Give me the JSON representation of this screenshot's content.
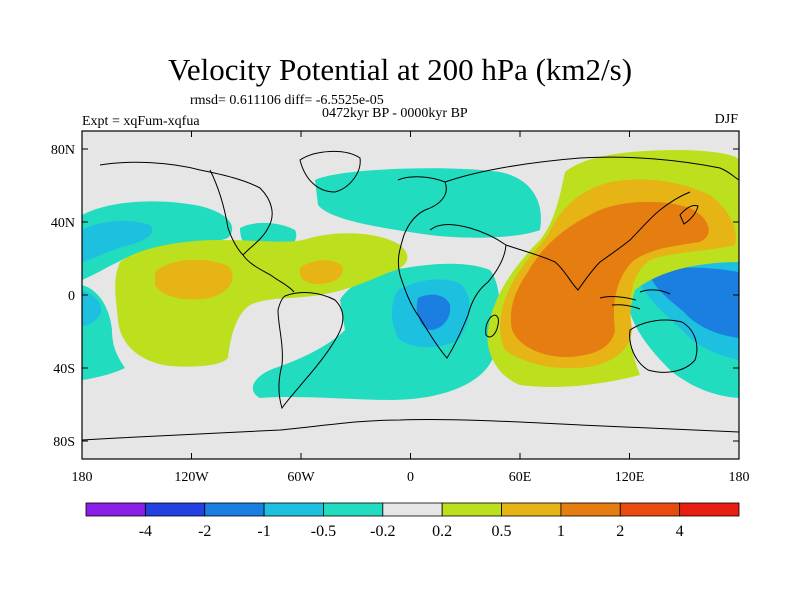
{
  "title": "Velocity Potential at 200 hPa (km2/s)",
  "stats": "rmsd= 0.611106 diff= -6.5525e-05",
  "left_label": "Expt = xqFum-xqfua",
  "center_label": "0472kyr BP - 0000kyr BP",
  "right_label": "DJF",
  "lat_ticks": [
    "80N",
    "40N",
    "0",
    "40S",
    "80S"
  ],
  "lon_ticks": [
    "180",
    "120W",
    "60W",
    "0",
    "60E",
    "120E",
    "180"
  ],
  "colorbar": {
    "labels": [
      "-4",
      "-2",
      "-1",
      "-0.5",
      "-0.2",
      "0.2",
      "0.5",
      "1",
      "2",
      "4"
    ],
    "colors": [
      "#8a1ee6",
      "#2340e0",
      "#1a7fe0",
      "#1ec0e0",
      "#22dcc0",
      "#e6e6e6",
      "#bde01e",
      "#e6b415",
      "#e57d10",
      "#e84a10",
      "#e81e10"
    ]
  },
  "palette": {
    "neutral": "#e6e6e6",
    "positive_light": "#bde01e",
    "positive_mid": "#e6b415",
    "positive_strong": "#e57d10",
    "negative_light": "#22dcc0",
    "negative_mid": "#1ec0e0",
    "negative_strong": "#1a7fe0",
    "coast": "#000000"
  }
}
